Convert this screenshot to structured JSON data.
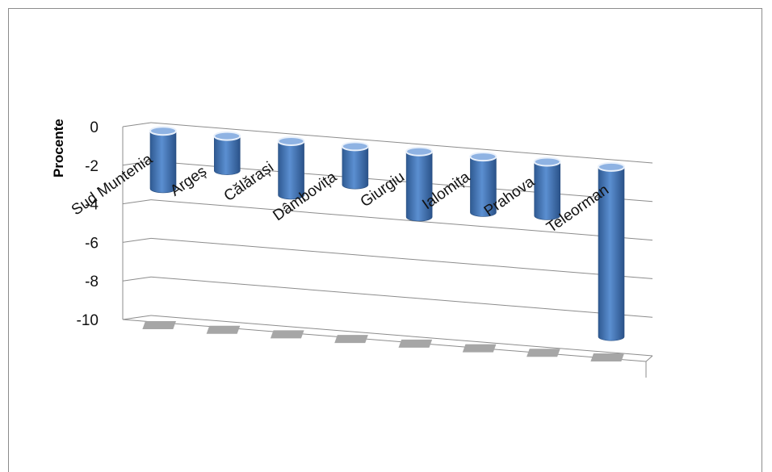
{
  "chart_data": {
    "type": "bar",
    "ylabel": "Procente",
    "categories": [
      "Sud Muntenia",
      "Argeș",
      "Călărași",
      "Dâmbovița",
      "Giurgiu",
      "Ialomița",
      "Prahova",
      "Teleorman"
    ],
    "series": [
      {
        "values": [
          -3.0,
          -1.8,
          -2.8,
          -2.0,
          -3.4,
          -2.9,
          -2.8,
          -8.8
        ]
      }
    ],
    "yticks": [
      0,
      -2,
      -4,
      -6,
      -8,
      -10
    ],
    "ylim": [
      -10,
      0
    ],
    "grid": true,
    "colors": {
      "bar": "#4f81bd",
      "floor": "#a6a6a6",
      "grid": "#8c8c8c"
    }
  }
}
